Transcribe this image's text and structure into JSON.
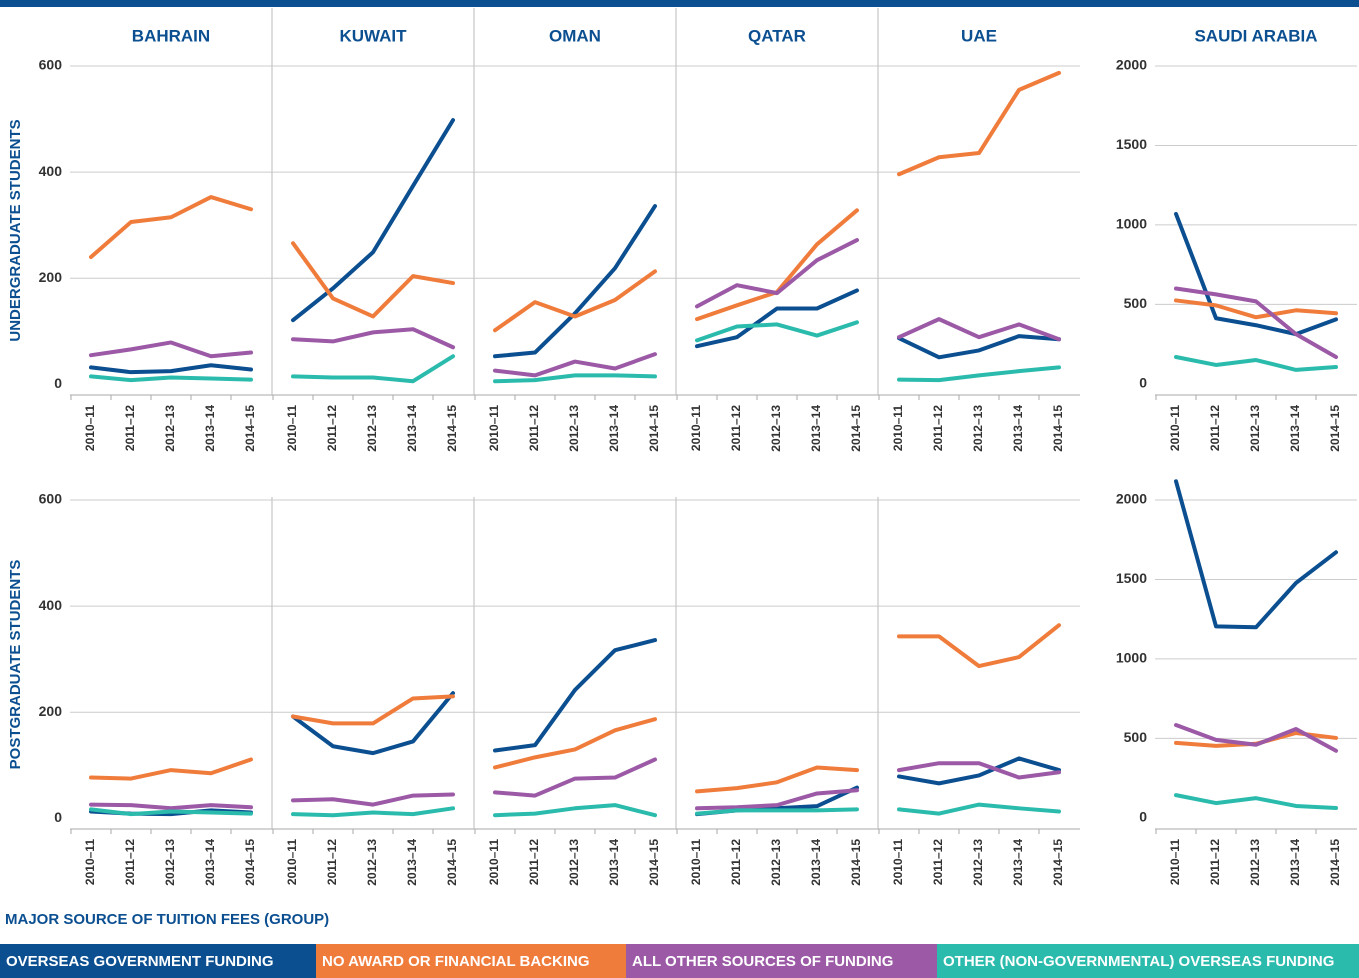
{
  "legend": {
    "title": "MAJOR SOURCE OF TUITION FEES (GROUP)",
    "series": [
      {
        "name": "OVERSEAS GOVERNMENT FUNDING",
        "color": "#0b4f91"
      },
      {
        "name": "NO AWARD OR FINANCIAL BACKING",
        "color": "#f07c3c"
      },
      {
        "name": "ALL OTHER SOURCES OF FUNDING",
        "color": "#9b59a6"
      },
      {
        "name": "OTHER (NON-GOVERNMENTAL) OVERSEAS FUNDING",
        "color": "#2bbbad"
      }
    ]
  },
  "chart_data": [
    {
      "type": "line",
      "title": "BAHRAIN",
      "ylabel": "UNDERGRADUATE STUDENTS",
      "categories": [
        "2010–11",
        "2011–12",
        "2012–13",
        "2013–14",
        "2014–15"
      ],
      "ylim": [
        -20,
        600
      ],
      "yticks": [
        0,
        200,
        400,
        600
      ],
      "series": [
        {
          "values": [
            32,
            23,
            25,
            36,
            28
          ]
        },
        {
          "values": [
            240,
            306,
            315,
            353,
            330
          ]
        },
        {
          "values": [
            55,
            66,
            79,
            53,
            60
          ]
        },
        {
          "values": [
            15,
            8,
            13,
            11,
            9
          ]
        }
      ]
    },
    {
      "type": "line",
      "title": "KUWAIT",
      "categories": [
        "2010–11",
        "2011–12",
        "2012–13",
        "2013–14",
        "2014–15"
      ],
      "ylim": [
        -20,
        600
      ],
      "series": [
        {
          "values": [
            121,
            181,
            249,
            374,
            498
          ]
        },
        {
          "values": [
            266,
            162,
            128,
            204,
            191
          ]
        },
        {
          "values": [
            85,
            81,
            98,
            104,
            70
          ]
        },
        {
          "values": [
            15,
            13,
            13,
            6,
            53
          ]
        }
      ]
    },
    {
      "type": "line",
      "title": "OMAN",
      "categories": [
        "2010–11",
        "2011–12",
        "2012–13",
        "2013–14",
        "2014–15"
      ],
      "ylim": [
        -20,
        600
      ],
      "series": [
        {
          "values": [
            53,
            60,
            134,
            219,
            336
          ]
        },
        {
          "values": [
            102,
            155,
            128,
            159,
            213
          ]
        },
        {
          "values": [
            26,
            17,
            43,
            30,
            57
          ]
        },
        {
          "values": [
            6,
            8,
            17,
            17,
            15
          ]
        }
      ]
    },
    {
      "type": "line",
      "title": "QATAR",
      "categories": [
        "2010–11",
        "2011–12",
        "2012–13",
        "2013–14",
        "2014–15"
      ],
      "ylim": [
        -20,
        600
      ],
      "series": [
        {
          "values": [
            72,
            89,
            143,
            143,
            177
          ]
        },
        {
          "values": [
            123,
            149,
            174,
            264,
            328
          ]
        },
        {
          "values": [
            147,
            187,
            172,
            234,
            272
          ]
        },
        {
          "values": [
            83,
            109,
            113,
            92,
            117
          ]
        }
      ]
    },
    {
      "type": "line",
      "title": "UAE",
      "categories": [
        "2010–11",
        "2011–12",
        "2012–13",
        "2013–14",
        "2014–15"
      ],
      "ylim": [
        -20,
        600
      ],
      "series": [
        {
          "values": [
            87,
            51,
            64,
            91,
            85
          ]
        },
        {
          "values": [
            396,
            428,
            436,
            555,
            587
          ]
        },
        {
          "values": [
            89,
            123,
            89,
            113,
            85
          ]
        },
        {
          "values": [
            9,
            8,
            17,
            25,
            32
          ]
        }
      ]
    },
    {
      "type": "line",
      "title": "SAUDI ARABIA",
      "categories": [
        "2010–11",
        "2011–12",
        "2012–13",
        "2013–14",
        "2014–15"
      ],
      "ylim": [
        -70,
        2000
      ],
      "yticks": [
        0,
        500,
        1000,
        1500,
        2000
      ],
      "series": [
        {
          "values": [
            1069,
            413,
            369,
            313,
            406
          ]
        },
        {
          "values": [
            525,
            494,
            419,
            463,
            444
          ]
        },
        {
          "values": [
            600,
            563,
            519,
            313,
            169
          ]
        },
        {
          "values": [
            169,
            119,
            150,
            88,
            106
          ]
        }
      ]
    },
    {
      "type": "line",
      "ylabel": "POSTGRADUATE  STUDENTS",
      "categories": [
        "2010–11",
        "2011–12",
        "2012–13",
        "2013–14",
        "2014–15"
      ],
      "ylim": [
        -20,
        600
      ],
      "yticks": [
        0,
        200,
        400,
        600
      ],
      "series": [
        {
          "values": [
            13,
            9,
            8,
            15,
            11
          ]
        },
        {
          "values": [
            77,
            75,
            91,
            85,
            111
          ]
        },
        {
          "values": [
            26,
            25,
            19,
            25,
            21
          ]
        },
        {
          "values": [
            17,
            8,
            13,
            11,
            9
          ]
        }
      ]
    },
    {
      "type": "line",
      "categories": [
        "2010–11",
        "2011–12",
        "2012–13",
        "2013–14",
        "2014–15"
      ],
      "ylim": [
        -20,
        600
      ],
      "series": [
        {
          "values": [
            192,
            136,
            123,
            145,
            236
          ]
        },
        {
          "values": [
            192,
            179,
            179,
            226,
            230
          ]
        },
        {
          "values": [
            34,
            36,
            26,
            43,
            45
          ]
        },
        {
          "values": [
            8,
            6,
            11,
            8,
            19
          ]
        }
      ]
    },
    {
      "type": "line",
      "categories": [
        "2010–11",
        "2011–12",
        "2012–13",
        "2013–14",
        "2014–15"
      ],
      "ylim": [
        -20,
        600
      ],
      "series": [
        {
          "values": [
            128,
            138,
            242,
            317,
            336
          ]
        },
        {
          "values": [
            96,
            115,
            130,
            166,
            187
          ]
        },
        {
          "values": [
            49,
            43,
            75,
            77,
            111
          ]
        },
        {
          "values": [
            6,
            9,
            19,
            25,
            6
          ]
        }
      ]
    },
    {
      "type": "line",
      "categories": [
        "2010–11",
        "2011–12",
        "2012–13",
        "2013–14",
        "2014–15"
      ],
      "ylim": [
        -20,
        600
      ],
      "series": [
        {
          "values": [
            8,
            15,
            19,
            23,
            58
          ]
        },
        {
          "values": [
            51,
            57,
            68,
            96,
            91
          ]
        },
        {
          "values": [
            19,
            21,
            25,
            47,
            53
          ]
        },
        {
          "values": [
            9,
            15,
            15,
            15,
            17
          ]
        }
      ]
    },
    {
      "type": "line",
      "categories": [
        "2010–11",
        "2011–12",
        "2012–13",
        "2013–14",
        "2014–15"
      ],
      "ylim": [
        -20,
        600
      ],
      "series": [
        {
          "values": [
            79,
            66,
            81,
            113,
            91
          ]
        },
        {
          "values": [
            343,
            343,
            287,
            304,
            364
          ]
        },
        {
          "values": [
            91,
            104,
            104,
            77,
            87
          ]
        },
        {
          "values": [
            17,
            9,
            26,
            19,
            13
          ]
        }
      ]
    },
    {
      "type": "line",
      "categories": [
        "2010–11",
        "2011–12",
        "2012–13",
        "2013–14",
        "2014–15"
      ],
      "ylim": [
        -70,
        2000
      ],
      "yticks": [
        0,
        500,
        1000,
        1500,
        2000
      ],
      "series": [
        {
          "values": [
            2118,
            1205,
            1199,
            1478,
            1671
          ]
        },
        {
          "values": [
            472,
            453,
            466,
            534,
            503
          ]
        },
        {
          "values": [
            584,
            491,
            460,
            559,
            422
          ]
        },
        {
          "values": [
            143,
            93,
            124,
            75,
            62
          ]
        }
      ]
    }
  ]
}
